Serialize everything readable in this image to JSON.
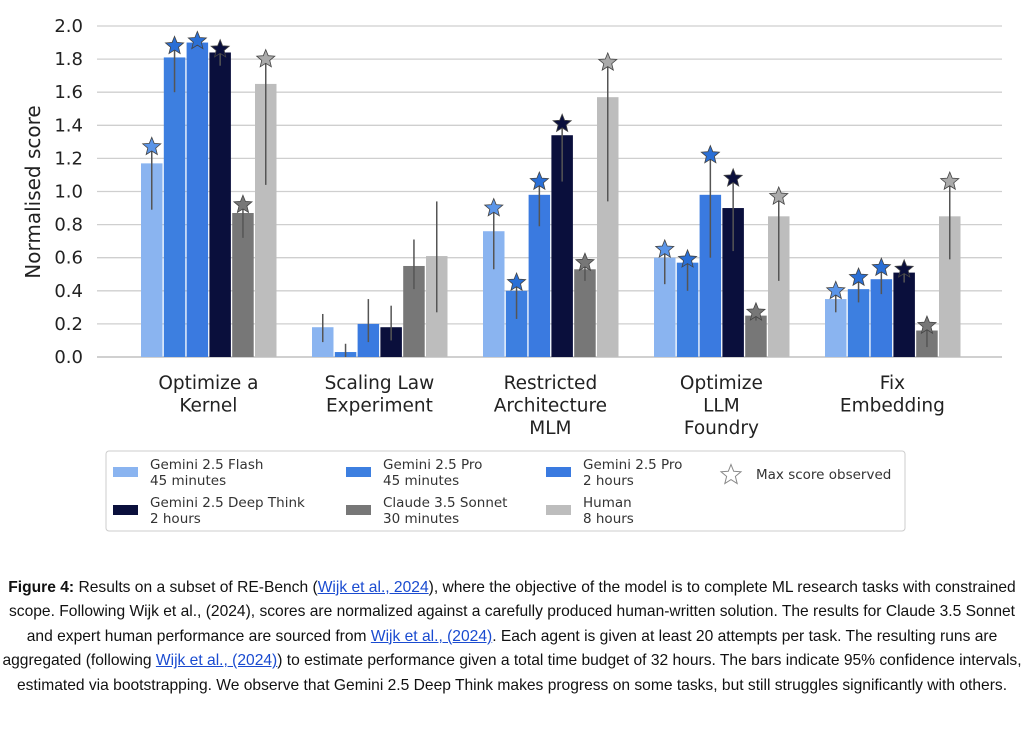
{
  "chart_data": {
    "type": "bar",
    "ylabel": "Normalised score",
    "ylim": [
      0,
      2.0
    ],
    "yticks": [
      "0.0",
      "0.2",
      "0.4",
      "0.6",
      "0.8",
      "1.0",
      "1.2",
      "1.4",
      "1.6",
      "1.8",
      "2.0"
    ],
    "grid": true,
    "categories": [
      [
        "Optimize a",
        "Kernel"
      ],
      [
        "Scaling Law",
        "Experiment"
      ],
      [
        "Restricted",
        "Architecture",
        "MLM"
      ],
      [
        "Optimize",
        "LLM",
        "Foundry"
      ],
      [
        "Fix",
        "Embedding"
      ]
    ],
    "series": [
      {
        "name": [
          "Gemini 2.5 Flash",
          "45 minutes"
        ],
        "color": "#8ab4f0",
        "values": [
          1.17,
          0.18,
          0.76,
          0.6,
          0.35
        ],
        "ci_low": [
          0.89,
          0.09,
          0.53,
          0.44,
          0.27
        ],
        "ci_high": [
          1.27,
          0.26,
          0.89,
          0.65,
          0.39
        ],
        "max": [
          1.27,
          null,
          0.9,
          0.65,
          0.4
        ],
        "star_color": "#5b95e8"
      },
      {
        "name": [
          "Gemini 2.5 Pro",
          "45 minutes"
        ],
        "color": "#3d7fe0",
        "values": [
          1.81,
          0.03,
          0.4,
          0.57,
          0.41
        ],
        "ci_low": [
          1.6,
          0.0,
          0.23,
          0.4,
          0.33
        ],
        "ci_high": [
          1.88,
          0.08,
          0.45,
          0.59,
          0.48
        ],
        "max": [
          1.88,
          null,
          0.45,
          0.59,
          0.48
        ],
        "star_color": "#2a6fd6"
      },
      {
        "name": [
          "Gemini 2.5 Pro",
          "2 hours"
        ],
        "color": "#3a7ae0",
        "values": [
          1.9,
          0.2,
          0.98,
          0.98,
          0.47
        ],
        "ci_low": [
          1.88,
          0.09,
          0.79,
          0.6,
          0.38
        ],
        "ci_high": [
          1.91,
          0.35,
          1.06,
          1.22,
          0.54
        ],
        "max": [
          1.91,
          null,
          1.06,
          1.22,
          0.54
        ],
        "star_color": "#2a6fd6"
      },
      {
        "name": [
          "Gemini 2.5 Deep Think",
          "2 hours"
        ],
        "color": "#0a0f3c",
        "values": [
          1.84,
          0.18,
          1.34,
          0.9,
          0.51
        ],
        "ci_low": [
          1.76,
          0.1,
          1.06,
          0.64,
          0.45
        ],
        "ci_high": [
          1.86,
          0.31,
          1.41,
          1.08,
          0.53
        ],
        "max": [
          1.86,
          null,
          1.41,
          1.08,
          0.53
        ],
        "star_color": "#0a0f3c"
      },
      {
        "name": [
          "Claude 3.5 Sonnet",
          "30 minutes"
        ],
        "color": "#777777",
        "values": [
          0.87,
          0.55,
          0.53,
          0.25,
          0.16
        ],
        "ci_low": [
          0.72,
          0.41,
          0.46,
          0.22,
          0.06
        ],
        "ci_high": [
          0.92,
          0.71,
          0.58,
          0.27,
          0.19
        ],
        "max": [
          0.92,
          null,
          0.57,
          0.27,
          0.19
        ],
        "star_color": "#777777"
      },
      {
        "name": [
          "Human",
          "8 hours"
        ],
        "color": "#bdbdbd",
        "values": [
          1.65,
          0.61,
          1.57,
          0.85,
          0.85
        ],
        "ci_low": [
          1.04,
          0.27,
          0.94,
          0.46,
          0.59
        ],
        "ci_high": [
          1.8,
          0.94,
          1.78,
          0.97,
          1.06
        ],
        "max": [
          1.8,
          null,
          1.78,
          0.97,
          1.06
        ],
        "star_color": "#aaaaaa"
      }
    ],
    "legend_extra": "Max score observed"
  },
  "caption": {
    "label": "Figure 4:",
    "t1": " Results on a subset of RE-Bench (",
    "link1": "Wijk et al., 2024",
    "t2": "), where the objective of the model is to complete ML research tasks with constrained scope. Following Wijk et al., (2024), scores are normalized against a carefully produced human-written solution. The results for Claude 3.5 Sonnet and expert human performance are sourced from ",
    "link2": "Wijk et al., (2024)",
    "t3": ". Each agent is given at least 20 attempts per task. The resulting runs are aggregated (following ",
    "link3": "Wijk et al., (2024)",
    "t4": ") to estimate performance given a total time budget of 32 hours. The bars indicate 95% confidence intervals, estimated via bootstrapping. We observe that Gemini 2.5 Deep Think makes progress on some tasks, but still struggles significantly with others."
  }
}
